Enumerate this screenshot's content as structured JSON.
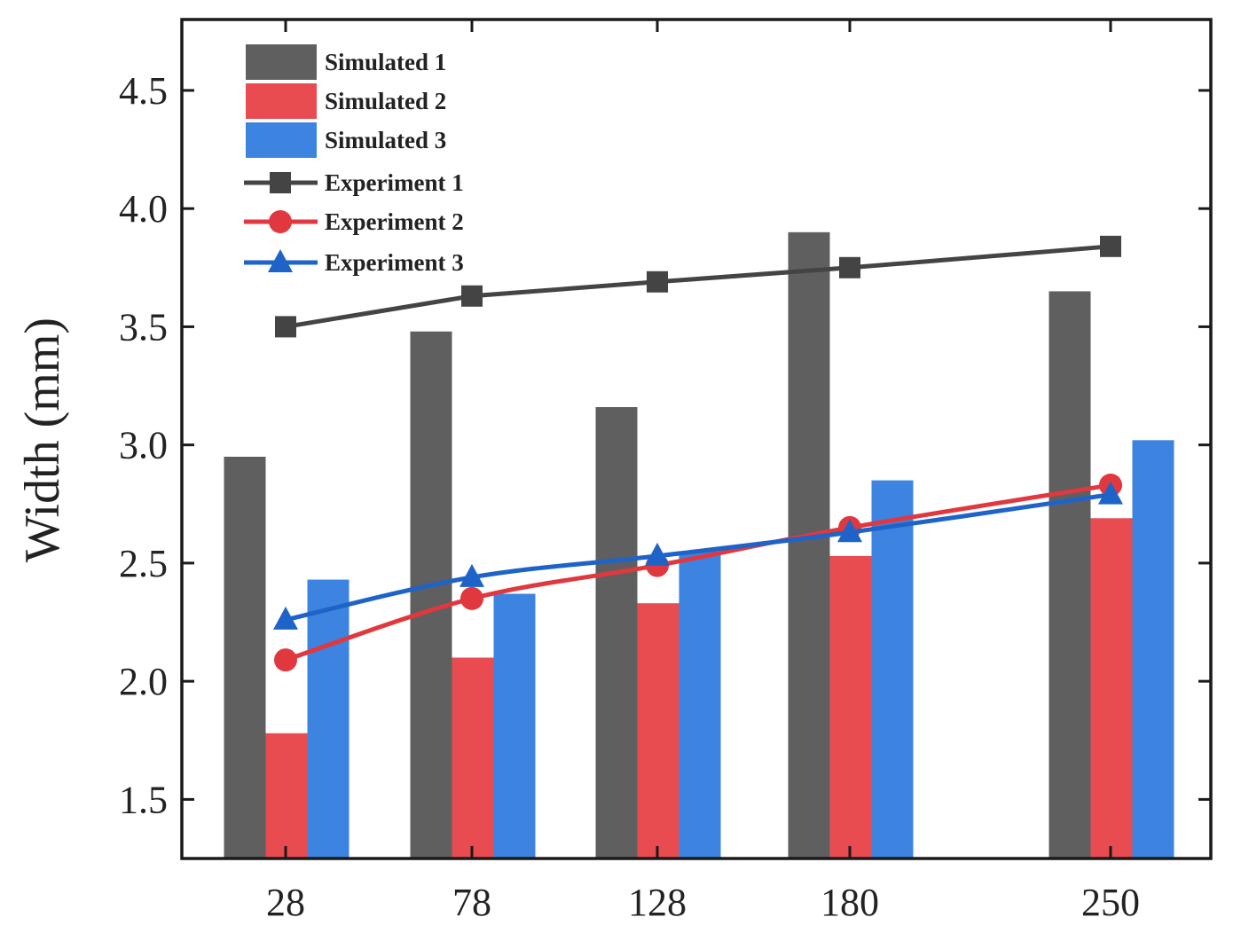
{
  "chart_data": {
    "type": "bar",
    "title": "",
    "xlabel": "",
    "ylabel": "Width (mm)",
    "categories": [
      "28",
      "78",
      "128",
      "180",
      "250"
    ],
    "ylim": [
      1.25,
      4.8
    ],
    "yticks": [
      "1.5",
      "2.0",
      "2.5",
      "3.0",
      "3.5",
      "4.0",
      "4.5"
    ],
    "grid": false,
    "legend_position": "top-left",
    "bar_series": [
      {
        "name": "Simulated 1",
        "color": "#5f5f5f",
        "values": [
          2.95,
          3.48,
          3.16,
          3.9,
          3.65
        ]
      },
      {
        "name": "Simulated 2",
        "color": "#e84c51",
        "values": [
          1.78,
          2.1,
          2.33,
          2.53,
          2.69
        ]
      },
      {
        "name": "Simulated 3",
        "color": "#3d83e0",
        "values": [
          2.43,
          2.37,
          2.55,
          2.85,
          3.02
        ]
      }
    ],
    "line_series": [
      {
        "name": "Experiment 1",
        "color": "#444444",
        "marker": "square",
        "values": [
          3.5,
          3.63,
          3.69,
          3.75,
          3.84
        ]
      },
      {
        "name": "Experiment 2",
        "color": "#e0383e",
        "marker": "circle",
        "values": [
          2.09,
          2.35,
          2.49,
          2.65,
          2.83
        ]
      },
      {
        "name": "Experiment 3",
        "color": "#1e64c8",
        "marker": "triangle",
        "values": [
          2.26,
          2.44,
          2.53,
          2.63,
          2.79
        ]
      }
    ]
  }
}
